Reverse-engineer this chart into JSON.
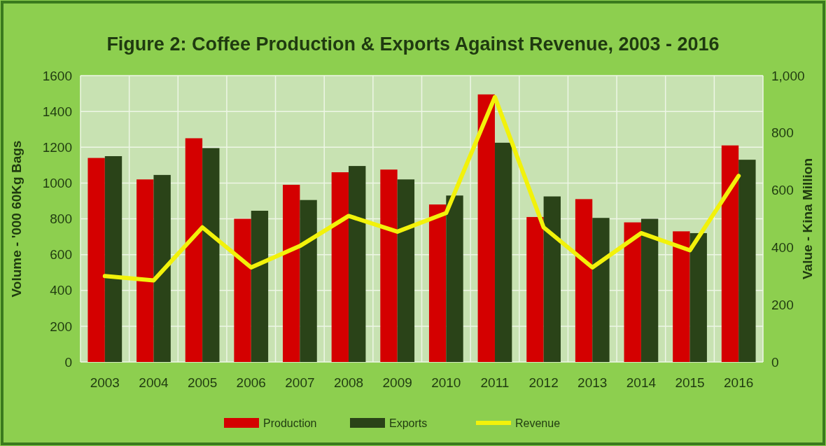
{
  "chart_data": {
    "type": "bar",
    "title": "Figure 2: Coffee Production & Exports Against Revenue, 2003 - 2016",
    "ylabel": "Volume - '000 60Kg Bags",
    "y2label": "Value - Kina Million",
    "categories": [
      "2003",
      "2004",
      "2005",
      "2006",
      "2007",
      "2008",
      "2009",
      "2010",
      "2011",
      "2012",
      "2013",
      "2014",
      "2015",
      "2016"
    ],
    "series": [
      {
        "name": "Production",
        "color": "#d40000",
        "values": [
          1140,
          1020,
          1250,
          800,
          990,
          1060,
          1075,
          880,
          1495,
          810,
          910,
          780,
          730,
          1210
        ]
      },
      {
        "name": "Exports",
        "color": "#2a4318",
        "values": [
          1150,
          1045,
          1195,
          845,
          905,
          1095,
          1020,
          930,
          1225,
          925,
          805,
          800,
          720,
          1130
        ]
      },
      {
        "name": "Revenue",
        "type": "line",
        "axis": "y2",
        "color": "#f2f20a",
        "values": [
          300,
          285,
          470,
          330,
          405,
          510,
          455,
          520,
          925,
          470,
          330,
          450,
          390,
          650
        ]
      }
    ],
    "ylim": [
      0,
      1600
    ],
    "yticks": [
      0,
      200,
      400,
      600,
      800,
      1000,
      1200,
      1400,
      1600
    ],
    "y2lim": [
      0,
      1000
    ],
    "y2ticks": [
      0,
      200,
      400,
      600,
      800,
      {
        "value": 1000,
        "label": "1,000"
      }
    ],
    "grid": true,
    "legend": "bottom"
  }
}
